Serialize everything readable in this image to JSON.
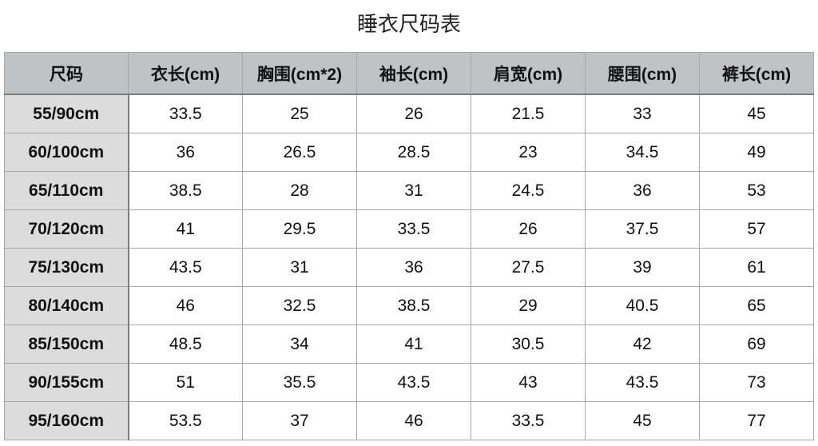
{
  "title": "睡衣尺码表",
  "headers": [
    "尺码",
    "衣长(cm)",
    "胸围(cm*2)",
    "袖长(cm)",
    "肩宽(cm)",
    "腰围(cm)",
    "裤长(cm)"
  ],
  "rows": [
    [
      "55/90cm",
      "33.5",
      "25",
      "26",
      "21.5",
      "33",
      "45"
    ],
    [
      "60/100cm",
      "36",
      "26.5",
      "28.5",
      "23",
      "34.5",
      "49"
    ],
    [
      "65/110cm",
      "38.5",
      "28",
      "31",
      "24.5",
      "36",
      "53"
    ],
    [
      "70/120cm",
      "41",
      "29.5",
      "33.5",
      "26",
      "37.5",
      "57"
    ],
    [
      "75/130cm",
      "43.5",
      "31",
      "36",
      "27.5",
      "39",
      "61"
    ],
    [
      "80/140cm",
      "46",
      "32.5",
      "38.5",
      "29",
      "40.5",
      "65"
    ],
    [
      "85/150cm",
      "48.5",
      "34",
      "41",
      "30.5",
      "42",
      "69"
    ],
    [
      "90/155cm",
      "51",
      "35.5",
      "43.5",
      "43",
      "43.5",
      "73"
    ],
    [
      "95/160cm",
      "53.5",
      "37",
      "46",
      "33.5",
      "45",
      "77"
    ]
  ],
  "colors": {
    "header_bg": "#c0c3c6",
    "size_col_bg": "#dcdcdc"
  }
}
